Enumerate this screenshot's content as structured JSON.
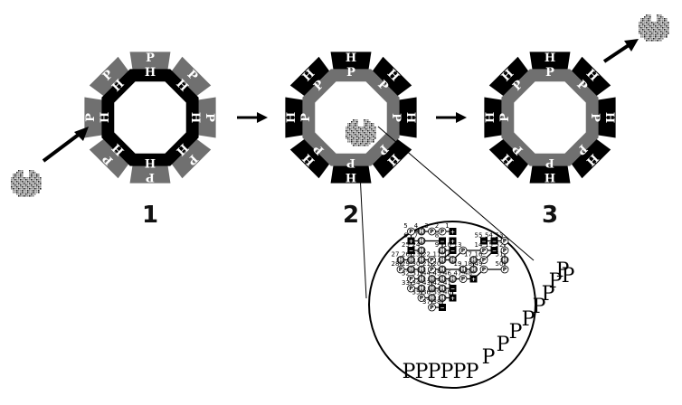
{
  "steps": [
    {
      "label": "1",
      "inner_sides": [
        "H",
        "H",
        "H",
        "H",
        "H",
        "H",
        "H",
        "H"
      ],
      "outer_sides": [
        "P",
        "P",
        "P",
        "P",
        "P",
        "P",
        "P",
        "P"
      ],
      "inner_color": "#000000",
      "outer_color": "#707070",
      "protein": "outside-left"
    },
    {
      "label": "2",
      "inner_sides": [
        "P",
        "P",
        "P",
        "P",
        "P",
        "P",
        "P",
        "P"
      ],
      "outer_sides": [
        "H",
        "H",
        "H",
        "H",
        "H",
        "H",
        "H",
        "H"
      ],
      "inner_color": "#707070",
      "outer_color": "#000000",
      "protein": "inside"
    },
    {
      "label": "3",
      "inner_sides": [
        "P",
        "P",
        "P",
        "P",
        "P",
        "P",
        "P",
        "P"
      ],
      "outer_sides": [
        "H",
        "H",
        "H",
        "H",
        "H",
        "H",
        "H",
        "H"
      ],
      "inner_color": "#707070",
      "outer_color": "#000000",
      "protein": "outside-right"
    }
  ],
  "zoom": {
    "numbers": [
      "1",
      "2",
      "3",
      "4",
      "5",
      "6",
      "7",
      "8",
      "9",
      "10",
      "11",
      "12",
      "13",
      "14",
      "15",
      "16",
      "17",
      "18",
      "19",
      "20",
      "21",
      "22",
      "23",
      "24",
      "25",
      "26",
      "27",
      "28",
      "29",
      "30",
      "31",
      "32",
      "33",
      "34",
      "35",
      "36",
      "37",
      "38",
      "39",
      "40",
      "41",
      "42",
      "43",
      "44",
      "45",
      "46",
      "47",
      "48",
      "49",
      "50",
      "51",
      "52",
      "53",
      "54",
      "55"
    ],
    "node_letters": {
      "polar": "P",
      "hydrophobic": "H",
      "positive": "+",
      "negative": "−"
    },
    "solvent_letters": [
      "P",
      "P",
      "P",
      "P",
      "P",
      "P",
      "P",
      "P",
      "P",
      "P",
      "P",
      "P",
      "P",
      "P",
      "P"
    ]
  },
  "colors": {
    "black": "#000000",
    "gray": "#707070",
    "white": "#ffffff"
  },
  "icons": [
    "right-arrow-icon",
    "diagonal-arrow-icon",
    "protein-blob-icon",
    "magnifier-circle-icon"
  ]
}
